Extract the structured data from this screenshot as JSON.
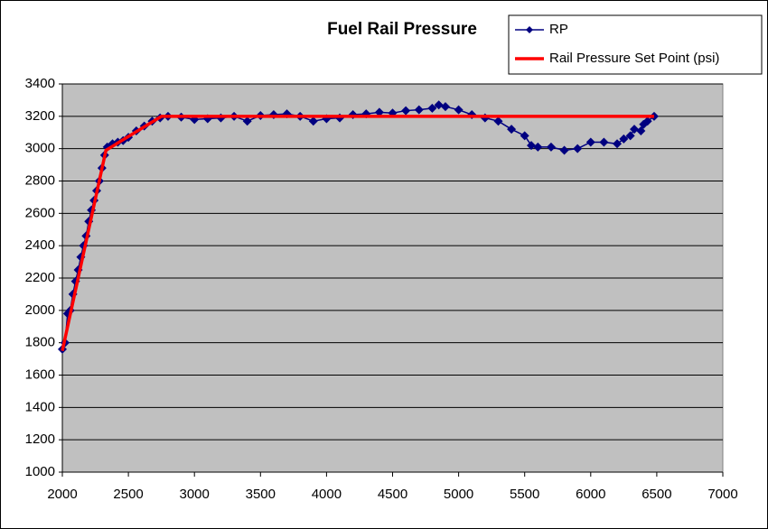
{
  "chart_data": {
    "type": "line",
    "title": "Fuel Rail Pressure",
    "xlim": [
      2000,
      7000
    ],
    "xticks": [
      2000,
      2500,
      3000,
      3500,
      4000,
      4500,
      5000,
      5500,
      6000,
      6500,
      7000
    ],
    "ylim": [
      1000,
      3400
    ],
    "yticks": [
      1000,
      1200,
      1400,
      1600,
      1800,
      2000,
      2200,
      2400,
      2600,
      2800,
      3000,
      3200,
      3400
    ],
    "grid": true,
    "series": [
      {
        "name": "RP",
        "color": "#000080",
        "marker": "diamond",
        "x": [
          2000,
          2020,
          2040,
          2060,
          2080,
          2100,
          2120,
          2140,
          2160,
          2180,
          2200,
          2220,
          2240,
          2260,
          2280,
          2300,
          2320,
          2340,
          2380,
          2420,
          2460,
          2500,
          2560,
          2620,
          2680,
          2740,
          2800,
          2900,
          3000,
          3100,
          3200,
          3300,
          3400,
          3500,
          3600,
          3700,
          3800,
          3900,
          4000,
          4100,
          4200,
          4300,
          4400,
          4500,
          4600,
          4700,
          4800,
          4850,
          4900,
          5000,
          5100,
          5200,
          5300,
          5400,
          5500,
          5550,
          5600,
          5700,
          5800,
          5900,
          6000,
          6100,
          6200,
          6250,
          6300,
          6330,
          6380,
          6400,
          6430,
          6480
        ],
        "values": [
          1760,
          1800,
          1980,
          2000,
          2100,
          2180,
          2250,
          2330,
          2400,
          2460,
          2550,
          2620,
          2680,
          2740,
          2800,
          2880,
          2960,
          3010,
          3030,
          3040,
          3050,
          3070,
          3110,
          3140,
          3170,
          3190,
          3200,
          3195,
          3180,
          3185,
          3190,
          3200,
          3170,
          3205,
          3210,
          3215,
          3200,
          3170,
          3185,
          3190,
          3210,
          3215,
          3225,
          3220,
          3235,
          3240,
          3250,
          3270,
          3260,
          3240,
          3210,
          3190,
          3170,
          3120,
          3080,
          3020,
          3010,
          3010,
          2990,
          3000,
          3040,
          3040,
          3030,
          3060,
          3080,
          3120,
          3110,
          3150,
          3170,
          3200
        ]
      },
      {
        "name": "Rail Pressure Set Point (psi)",
        "color": "#ff0000",
        "x": [
          2000,
          2330,
          2750,
          6480
        ],
        "values": [
          1750,
          2990,
          3200,
          3200
        ]
      }
    ]
  }
}
